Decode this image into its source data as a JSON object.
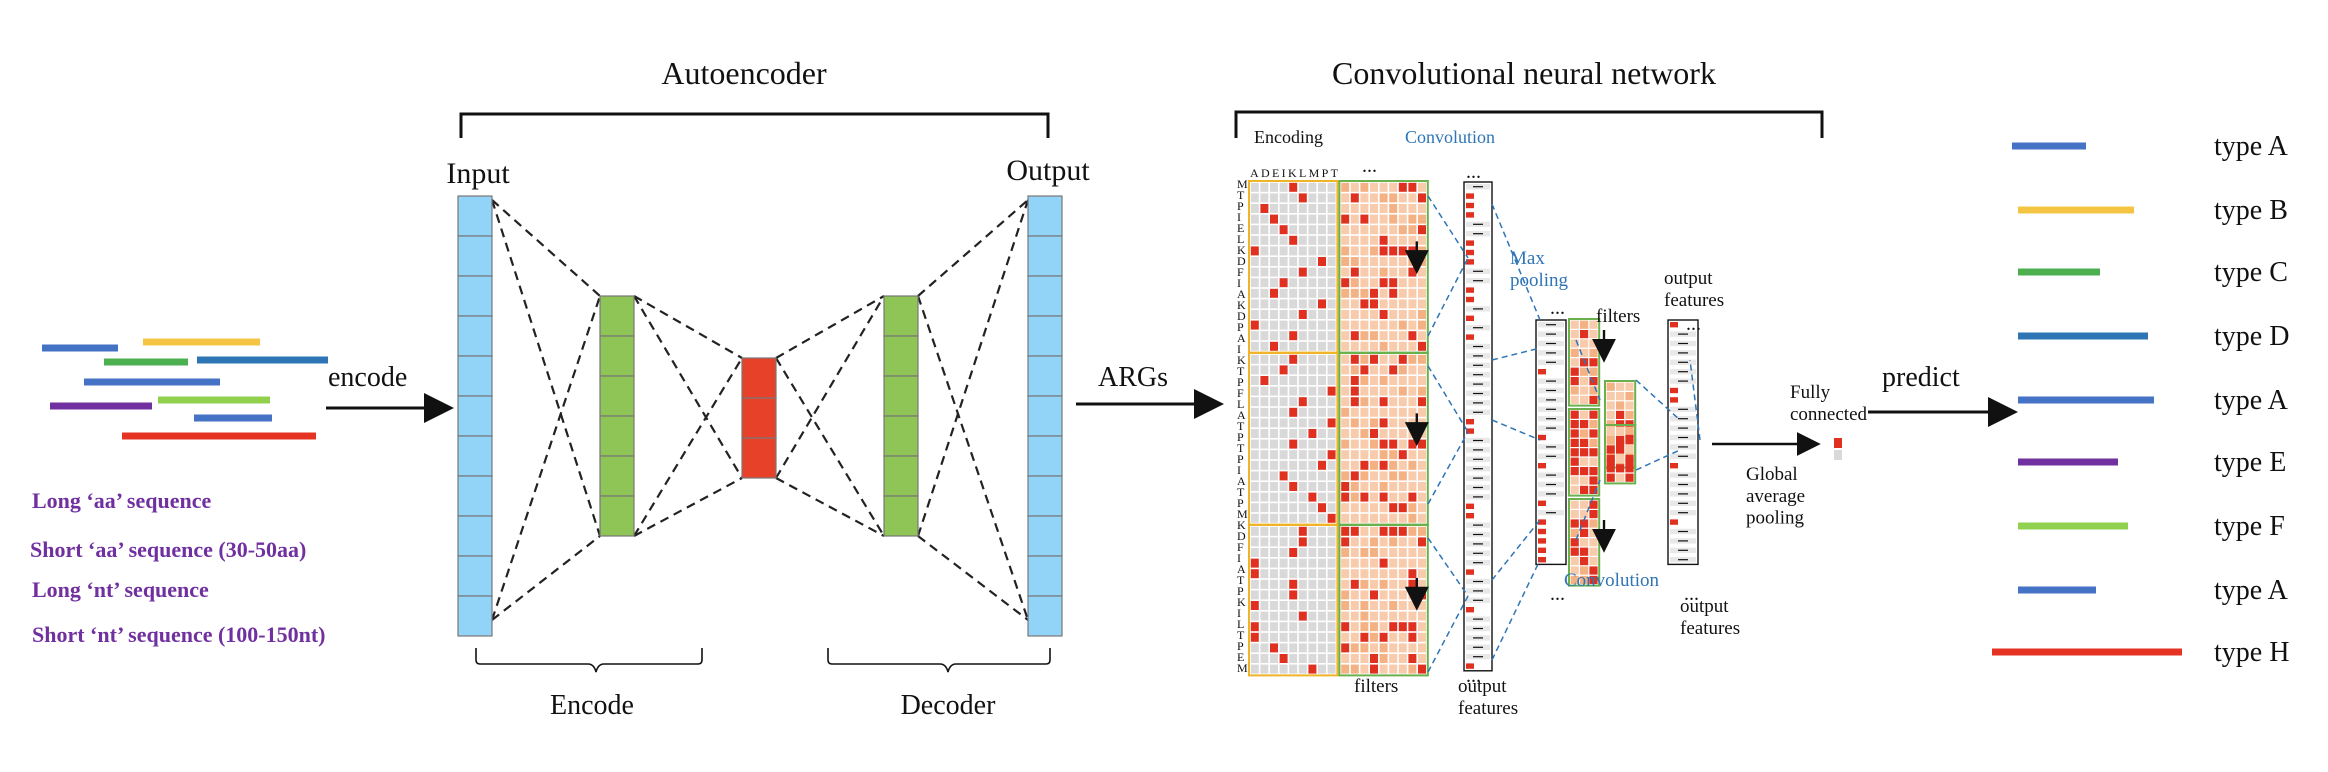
{
  "autoencoder": {
    "title": "Autoencoder",
    "input_label": "Input",
    "output_label": "Output",
    "encode_label": "Encode",
    "decoder_label": "Decoder"
  },
  "input_side": {
    "encode_arrow_label": "encode",
    "sequence_types": [
      "Long ‘aa’ sequence",
      "Short ‘aa’ sequence (30-50aa)",
      "Long ‘nt’ sequence",
      "Short ‘nt’ sequence (100-150nt)"
    ],
    "sequence_types_color": "#7030a0"
  },
  "args_label": "ARGs",
  "cnn": {
    "title": "Convolutional neural network",
    "encoding_label": "Encoding",
    "convolution_label": "Convolution",
    "alphabet": "ADEIKLMPT",
    "ellipsis": "...",
    "sequence_letters": [
      "M",
      "T",
      "P",
      "I",
      "E",
      "L",
      "K",
      "D",
      "F",
      "I",
      "A",
      "K",
      "D",
      "P",
      "A",
      "I",
      "K",
      "T",
      "P",
      "F",
      "L",
      "A",
      "T",
      "P",
      "T",
      "P",
      "I",
      "A",
      "T",
      "P",
      "M",
      "K",
      "D",
      "F",
      "I",
      "A",
      "T",
      "P",
      "K",
      "I",
      "L",
      "T",
      "P",
      "E",
      "M"
    ],
    "max_pooling_label": "Max\npooling",
    "filters_label": "filters",
    "output_features_label": "output\nfeatures",
    "convolution2_label": "Convolution",
    "gap_label": "Global\naverage\npooling",
    "fc_label": "Fully\nconnected",
    "accent_blue": "#2e75b6",
    "cell_red": "#e03020",
    "cell_grey": "#d9d9d9",
    "cell_peach": "#f8cbad",
    "encoding_border": "#f0b429",
    "filter_border": "#6ab04c"
  },
  "predict_label": "predict",
  "types": [
    {
      "label": "type A",
      "color": "#4472c4"
    },
    {
      "label": "type B",
      "color": "#f4c542"
    },
    {
      "label": "type C",
      "color": "#4caf50"
    },
    {
      "label": "type D",
      "color": "#2e75b6"
    },
    {
      "label": "type A",
      "color": "#4472c4"
    },
    {
      "label": "type E",
      "color": "#7030a0"
    },
    {
      "label": "type F",
      "color": "#92d050"
    },
    {
      "label": "type A",
      "color": "#4472c4"
    },
    {
      "label": "type H",
      "color": "#e53323"
    }
  ],
  "colors": {
    "input_layer": "#92d4f7",
    "hidden_layer": "#8fc456",
    "bottleneck": "#e8412a",
    "line": "#222222"
  }
}
